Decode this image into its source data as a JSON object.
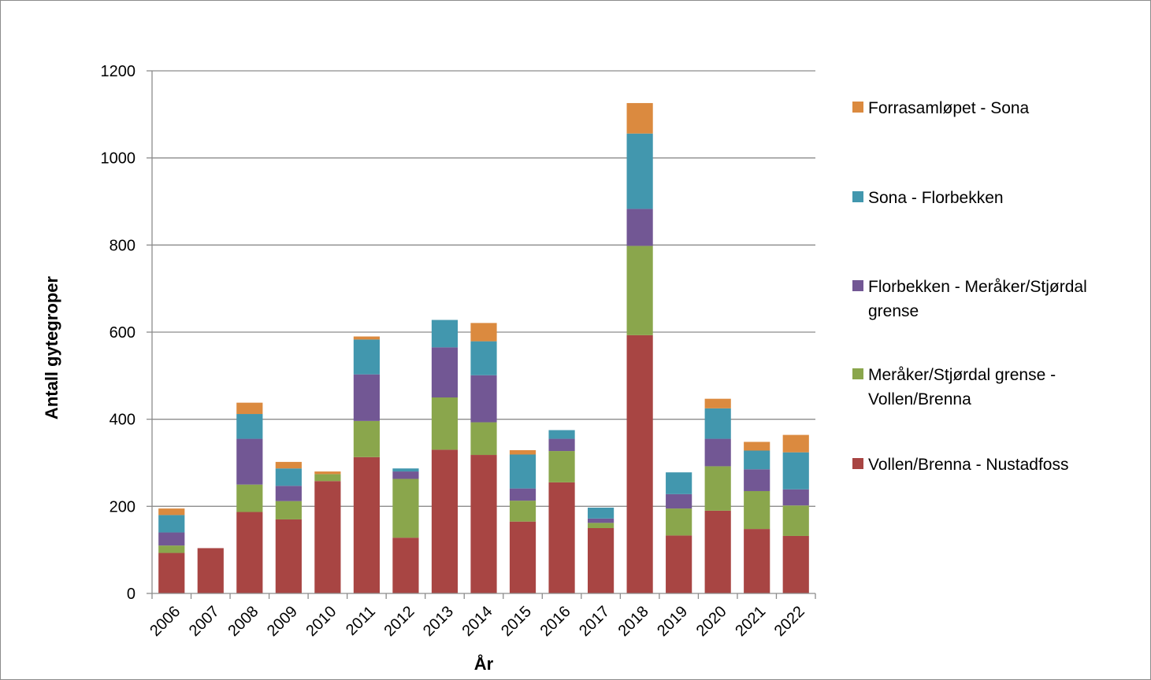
{
  "chart_data": {
    "type": "bar",
    "stacked": true,
    "title": "",
    "xlabel": "År",
    "ylabel": "Antall gytegroper",
    "ylim": [
      0,
      1200
    ],
    "yticks": [
      "0",
      "200",
      "400",
      "600",
      "800",
      "1000",
      "1200"
    ],
    "grid": true,
    "legend_position": "right",
    "categories": [
      "2006",
      "2007",
      "2008",
      "2009",
      "2010",
      "2011",
      "2012",
      "2013",
      "2014",
      "2015",
      "2016",
      "2017",
      "2018",
      "2019",
      "2020",
      "2021",
      "2022"
    ],
    "series": [
      {
        "name": "Vollen/Brenna - Nustadfoss",
        "legend_lines": [
          "Vollen/Brenna - Nustadfoss"
        ],
        "color": "#a84543",
        "values": [
          93,
          104,
          187,
          170,
          258,
          313,
          128,
          330,
          318,
          165,
          255,
          150,
          593,
          133,
          190,
          148,
          132
        ]
      },
      {
        "name": "Meråker/Stjørdal grense - Vollen/Brenna",
        "legend_lines": [
          "Meråker/Stjørdal grense -",
          "Vollen/Brenna"
        ],
        "color": "#8aa64c",
        "values": [
          17,
          0,
          63,
          42,
          16,
          83,
          135,
          120,
          75,
          48,
          72,
          12,
          205,
          62,
          102,
          87,
          70
        ]
      },
      {
        "name": "Florbekken - Meråker/Stjørdal grense",
        "legend_lines": [
          "Florbekken - Meråker/Stjørdal",
          "grense"
        ],
        "color": "#725794",
        "values": [
          30,
          0,
          105,
          35,
          0,
          107,
          17,
          115,
          108,
          28,
          28,
          10,
          85,
          33,
          63,
          50,
          37
        ]
      },
      {
        "name": "Sona - Florbekken",
        "legend_lines": [
          "Sona - Florbekken"
        ],
        "color": "#4297ae",
        "values": [
          40,
          0,
          57,
          40,
          0,
          80,
          7,
          63,
          78,
          78,
          20,
          25,
          173,
          50,
          70,
          43,
          85
        ]
      },
      {
        "name": "Forrasamløpet - Sona",
        "legend_lines": [
          "Forrasamløpet - Sona"
        ],
        "color": "#db8a3f",
        "values": [
          15,
          0,
          26,
          15,
          6,
          7,
          0,
          0,
          42,
          10,
          0,
          0,
          70,
          0,
          22,
          20,
          40
        ]
      }
    ]
  }
}
